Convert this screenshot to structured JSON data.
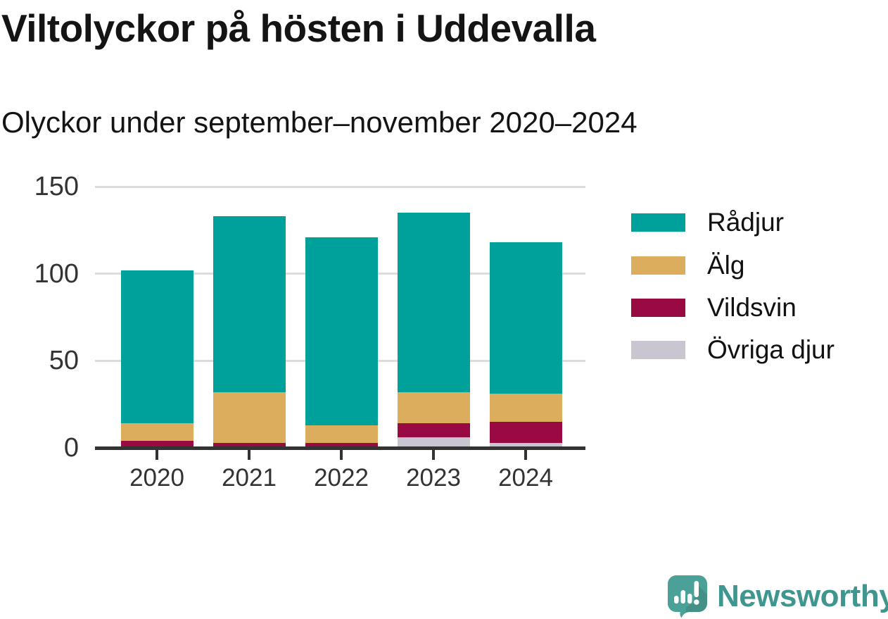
{
  "header": {
    "title": "Viltolyckor på hösten i Uddevalla",
    "subtitle": "Olyckor under september–november 2020–2024"
  },
  "chart_data": {
    "type": "bar",
    "stacked": true,
    "title": "Viltolyckor på hösten i Uddevalla",
    "subtitle": "Olyckor under september–november 2020–2024",
    "categories": [
      "2020",
      "2021",
      "2022",
      "2023",
      "2024"
    ],
    "series": [
      {
        "name": "Rådjur",
        "color": "#00a19a",
        "values": [
          88,
          101,
          108,
          103,
          87
        ]
      },
      {
        "name": "Älg",
        "color": "#dbad5c",
        "values": [
          10,
          29,
          10,
          18,
          16
        ]
      },
      {
        "name": "Vildsvin",
        "color": "#9a0a42",
        "values": [
          4,
          3,
          3,
          8,
          12
        ]
      },
      {
        "name": "Övriga djur",
        "color": "#c9c6d1",
        "values": [
          0,
          0,
          0,
          6,
          3
        ]
      }
    ],
    "totals": [
      102,
      133,
      121,
      135,
      118
    ],
    "ylim": [
      0,
      150
    ],
    "yticks": [
      0,
      50,
      100,
      150
    ],
    "xlabel": "",
    "ylabel": "",
    "grid": "horizontal",
    "legend_position": "right",
    "colors": {
      "gridline": "#dcdcdc",
      "axis": "#333333",
      "text": "#111111"
    }
  },
  "branding": {
    "name": "Newsworthy",
    "color": "#3f968e",
    "logo_icon": "speech-bubble-bar-chart-exclamation"
  }
}
